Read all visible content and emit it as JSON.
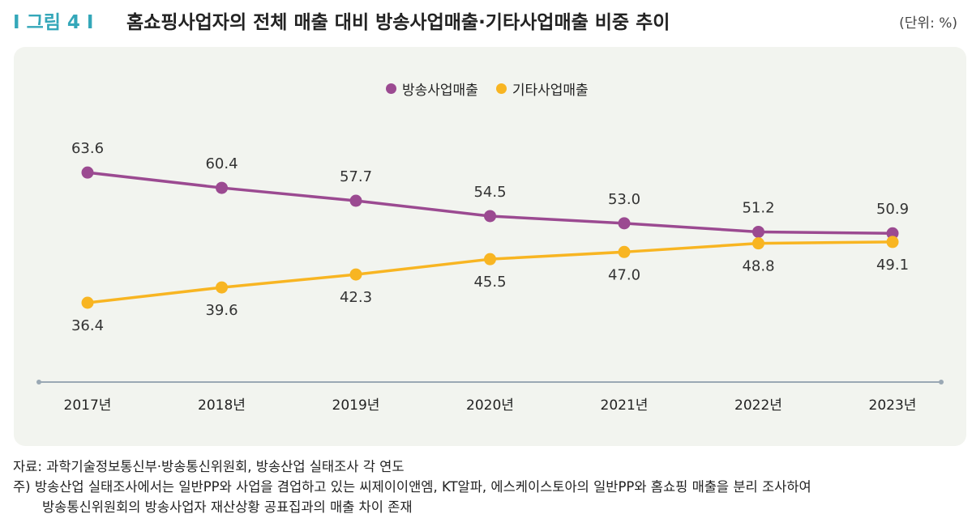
{
  "header": {
    "figure_label": "I 그림 4 I",
    "title": "홈쇼핑사업자의 전체 매출 대비 방송사업매출·기타사업매출 비중 추이",
    "unit": "(단위: %)"
  },
  "colors": {
    "broadcast": "#9b4a91",
    "other": "#f8b522",
    "axis": "#9aa8b4",
    "label_accent": "#34a7b9"
  },
  "chart_data": {
    "type": "line",
    "categories": [
      "2017년",
      "2018년",
      "2019년",
      "2020년",
      "2021년",
      "2022년",
      "2023년"
    ],
    "series": [
      {
        "name": "방송사업매출",
        "values": [
          63.6,
          60.4,
          57.7,
          54.5,
          53.0,
          51.2,
          50.9
        ]
      },
      {
        "name": "기타사업매출",
        "values": [
          36.4,
          39.6,
          42.3,
          45.5,
          47.0,
          48.8,
          49.1
        ]
      }
    ],
    "data_labels": {
      "방송사업매출": [
        "63.6",
        "60.4",
        "57.7",
        "54.5",
        "53.0",
        "51.2",
        "50.9"
      ],
      "기타사업매출": [
        "36.4",
        "39.6",
        "42.3",
        "45.5",
        "47.0",
        "48.8",
        "49.1"
      ]
    },
    "legend_position": "top-center",
    "grid": false
  },
  "notes": {
    "source": "자료: 과학기술정보통신부·방송통신위원회, 방송산업 실태조사 각 연도",
    "note_line1": "주) 방송산업 실태조사에서는 일반PP와 사업을 겸업하고 있는 씨제이이앤엠, KT알파, 에스케이스토아의 일반PP와 홈쇼핑 매출을 분리 조사하여",
    "note_line2": "방송통신위원회의 방송사업자 재산상황 공표집과의 매출 차이 존재"
  }
}
